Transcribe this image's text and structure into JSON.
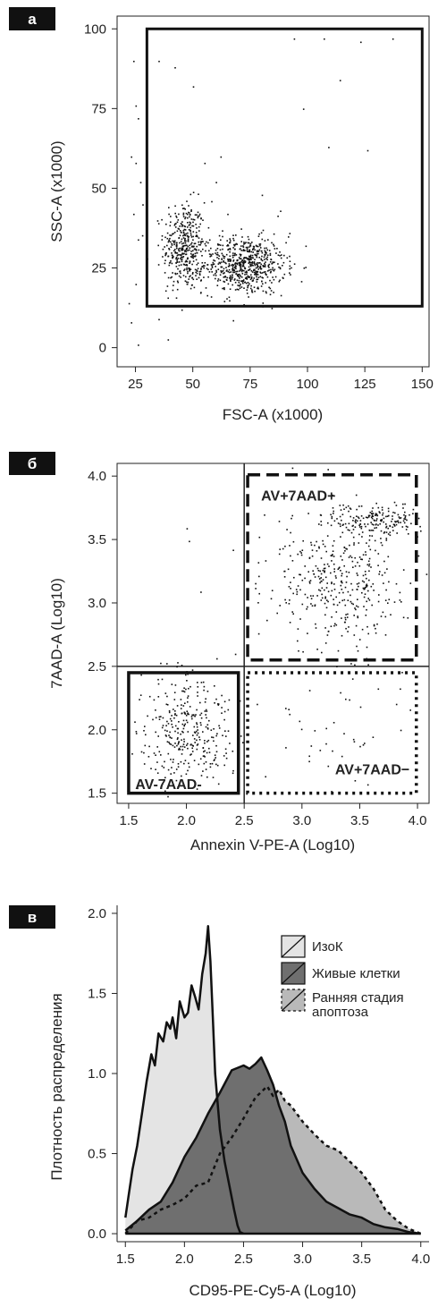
{
  "panels": {
    "a": {
      "tag": "а"
    },
    "b": {
      "tag": "б"
    },
    "c": {
      "tag": "в"
    }
  },
  "chart_data": [
    {
      "panel": "а",
      "type": "scatter",
      "xlabel": "FSC-A (x1000)",
      "ylabel": "SSC-A (x1000)",
      "xlim": [
        17,
        153
      ],
      "ylim": [
        -6,
        104
      ],
      "xticks": [
        25,
        50,
        75,
        100,
        125,
        150
      ],
      "yticks": [
        0,
        25,
        50,
        75,
        100
      ],
      "gate": {
        "x": [
          30,
          150
        ],
        "y": [
          13,
          100
        ]
      },
      "clusters": [
        {
          "name": "",
          "center": [
            46,
            32
          ],
          "spread": [
            4.5,
            7
          ],
          "count": 380
        },
        {
          "name": "",
          "center": [
            72,
            26
          ],
          "spread": [
            9,
            4.5
          ],
          "count": 650
        }
      ],
      "outliers": [
        [
          24,
          90
        ],
        [
          25,
          76
        ],
        [
          26,
          72
        ],
        [
          23,
          60
        ],
        [
          25,
          58
        ],
        [
          27,
          52
        ],
        [
          24,
          42
        ],
        [
          26,
          34
        ],
        [
          25,
          20
        ],
        [
          22,
          14
        ],
        [
          23,
          8
        ],
        [
          26,
          1
        ],
        [
          28,
          45
        ],
        [
          30,
          28
        ],
        [
          35,
          90
        ],
        [
          42,
          88
        ],
        [
          50,
          82
        ],
        [
          94,
          97
        ],
        [
          107,
          97
        ],
        [
          114,
          84
        ],
        [
          123,
          96
        ],
        [
          137,
          97
        ],
        [
          109,
          63
        ],
        [
          98,
          75
        ],
        [
          126,
          62
        ],
        [
          62,
          60
        ],
        [
          60,
          52
        ],
        [
          55,
          58
        ],
        [
          58,
          46
        ],
        [
          80,
          48
        ],
        [
          88,
          43
        ],
        [
          92,
          36
        ],
        [
          65,
          42
        ],
        [
          38,
          18
        ],
        [
          35,
          9
        ],
        [
          45,
          12
        ]
      ]
    },
    {
      "panel": "б",
      "type": "scatter",
      "xlabel": "Annexin V-PE-A (Log10)",
      "ylabel": "7AAD-A (Log10)",
      "xlim": [
        1.4,
        4.1
      ],
      "ylim": [
        1.42,
        4.1
      ],
      "xticks": [
        1.5,
        2.0,
        2.5,
        3.0,
        3.5,
        4.0
      ],
      "yticks": [
        1.5,
        2.0,
        2.5,
        3.0,
        3.5,
        4.0
      ],
      "quadrant_lines": {
        "x": 2.5,
        "y": 2.5
      },
      "gates": [
        {
          "label": "AV+7AAD+",
          "x": [
            2.53,
            3.99
          ],
          "y": [
            2.55,
            4.01
          ],
          "style": "dashed"
        },
        {
          "label": "AV-7AAD-",
          "x": [
            1.5,
            2.45
          ],
          "y": [
            1.5,
            2.45
          ],
          "style": "solid"
        },
        {
          "label": "AV+7AAD−",
          "x": [
            2.53,
            3.99
          ],
          "y": [
            1.5,
            2.45
          ],
          "style": "dotted"
        }
      ],
      "clusters": [
        {
          "name": "",
          "center": [
            3.3,
            3.2
          ],
          "spread": [
            0.3,
            0.28
          ],
          "count": 420
        },
        {
          "name": "",
          "center": [
            3.7,
            3.65
          ],
          "spread": [
            0.18,
            0.06
          ],
          "count": 160
        },
        {
          "name": "",
          "center": [
            2.0,
            2.0
          ],
          "spread": [
            0.2,
            0.22
          ],
          "count": 330
        },
        {
          "name": "",
          "center": [
            3.3,
            2.0
          ],
          "spread": [
            0.35,
            0.25
          ],
          "count": 45
        }
      ],
      "outliers": [
        [
          2.0,
          3.59
        ],
        [
          2.02,
          3.49
        ],
        [
          2.12,
          3.09
        ],
        [
          2.4,
          3.42
        ],
        [
          2.42,
          2.6
        ]
      ]
    },
    {
      "panel": "в",
      "type": "area",
      "xlabel": "CD95-PE-Cy5-A (Log10)",
      "ylabel": "Плотность распределения",
      "xlim": [
        1.43,
        4.07
      ],
      "ylim": [
        -0.05,
        2.05
      ],
      "xticks": [
        1.5,
        2.0,
        2.5,
        3.0,
        3.5,
        4.0
      ],
      "yticks": [
        0.0,
        0.5,
        1.0,
        1.5,
        2.0
      ],
      "legend_position": "top-right",
      "series": [
        {
          "name": "ИзоК",
          "fill": "#e4e4e4",
          "stroke": "solid",
          "x": [
            1.5,
            1.53,
            1.56,
            1.6,
            1.64,
            1.68,
            1.72,
            1.75,
            1.78,
            1.82,
            1.85,
            1.88,
            1.9,
            1.93,
            1.96,
            2.0,
            2.03,
            2.06,
            2.09,
            2.12,
            2.15,
            2.18,
            2.2,
            2.22,
            2.24,
            2.26,
            2.28,
            2.3,
            2.34,
            2.38,
            2.42,
            2.45,
            2.47,
            2.5
          ],
          "values": [
            0.1,
            0.25,
            0.4,
            0.55,
            0.75,
            0.95,
            1.12,
            1.05,
            1.25,
            1.2,
            1.32,
            1.28,
            1.35,
            1.22,
            1.45,
            1.35,
            1.38,
            1.55,
            1.48,
            1.4,
            1.62,
            1.75,
            1.92,
            1.7,
            1.35,
            1.0,
            0.82,
            0.65,
            0.45,
            0.3,
            0.15,
            0.05,
            0.01,
            0.0
          ]
        },
        {
          "name": "Живые клетки",
          "fill": "#6f6f6f",
          "stroke": "solid",
          "x": [
            1.5,
            1.6,
            1.7,
            1.8,
            1.9,
            2.0,
            2.1,
            2.2,
            2.3,
            2.4,
            2.5,
            2.55,
            2.6,
            2.65,
            2.7,
            2.75,
            2.8,
            2.85,
            2.9,
            3.0,
            3.1,
            3.2,
            3.3,
            3.4,
            3.5,
            3.6,
            3.7,
            3.8,
            3.9,
            4.0
          ],
          "values": [
            0.02,
            0.08,
            0.15,
            0.2,
            0.32,
            0.48,
            0.6,
            0.75,
            0.88,
            1.02,
            1.05,
            1.03,
            1.06,
            1.1,
            1.02,
            0.93,
            0.8,
            0.7,
            0.55,
            0.38,
            0.28,
            0.2,
            0.16,
            0.12,
            0.1,
            0.06,
            0.04,
            0.03,
            0.01,
            0.0
          ]
        },
        {
          "name": "Ранняя стадия апоптоза",
          "fill": "#b9b9b9",
          "stroke": "dotted",
          "x": [
            1.5,
            1.6,
            1.7,
            1.8,
            1.9,
            2.0,
            2.1,
            2.2,
            2.3,
            2.4,
            2.5,
            2.6,
            2.7,
            2.75,
            2.8,
            2.85,
            2.9,
            3.0,
            3.1,
            3.2,
            3.3,
            3.4,
            3.5,
            3.6,
            3.7,
            3.8,
            3.9,
            4.0
          ],
          "values": [
            0.0,
            0.08,
            0.1,
            0.15,
            0.18,
            0.22,
            0.3,
            0.32,
            0.5,
            0.6,
            0.72,
            0.85,
            0.92,
            0.86,
            0.9,
            0.83,
            0.8,
            0.7,
            0.62,
            0.55,
            0.52,
            0.45,
            0.38,
            0.28,
            0.15,
            0.08,
            0.03,
            0.0
          ]
        }
      ]
    }
  ]
}
